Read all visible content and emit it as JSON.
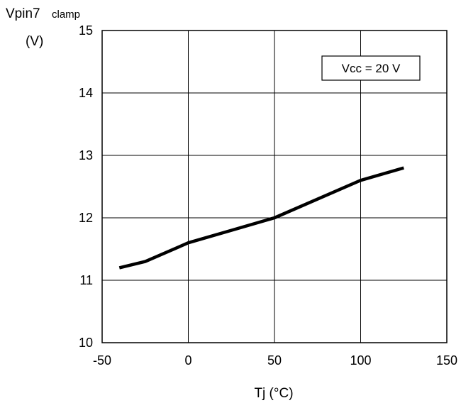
{
  "chart_data": {
    "type": "line",
    "ylabel_main": "Vpin7",
    "ylabel_sub": "clamp",
    "ylabel_unit": "(V)",
    "xlabel": "Tj  (°C)",
    "annotation": "Vcc = 20 V",
    "xlim": [
      -50,
      150
    ],
    "ylim": [
      10,
      15
    ],
    "xticks": [
      -50,
      0,
      50,
      100,
      150
    ],
    "yticks": [
      10,
      11,
      12,
      13,
      14,
      15
    ],
    "grid": true,
    "series": [
      {
        "x": [
          -40,
          -25,
          0,
          25,
          50,
          75,
          100,
          125
        ],
        "y": [
          11.2,
          11.3,
          11.6,
          11.8,
          12.0,
          12.3,
          12.6,
          12.8
        ],
        "color": "#000000"
      }
    ]
  }
}
